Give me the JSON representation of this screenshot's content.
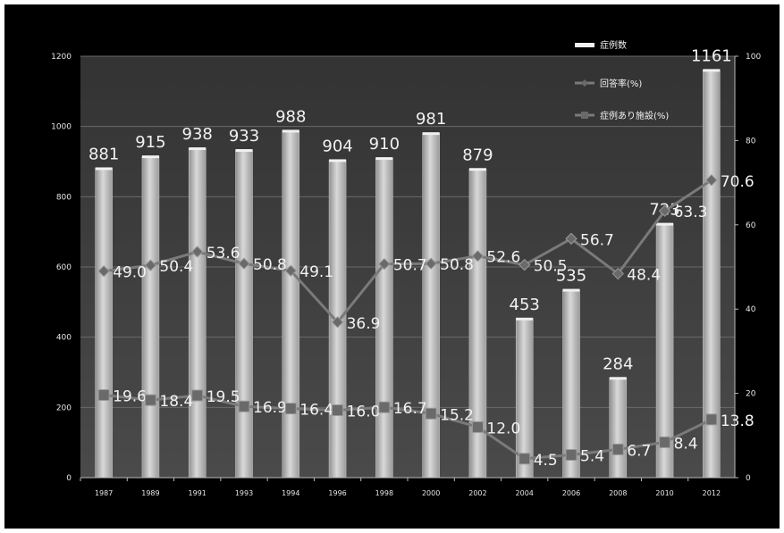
{
  "chart_data": {
    "type": "bar",
    "categories": [
      "1987",
      "1989",
      "1991",
      "1993",
      "1994",
      "1996",
      "1998",
      "2000",
      "2002",
      "2004",
      "2006",
      "2008",
      "2010",
      "2012"
    ],
    "series": [
      {
        "name": "症例数",
        "type": "bar",
        "axis": "left",
        "values": [
          881,
          915,
          938,
          933,
          988,
          904,
          910,
          981,
          879,
          453,
          535,
          284,
          723,
          1161
        ],
        "labels": [
          "881",
          "915",
          "938",
          "933",
          "988",
          "904",
          "910",
          "981",
          "879",
          "453",
          "535",
          "284",
          "723",
          "1161"
        ]
      },
      {
        "name": "回答率(%)",
        "type": "line",
        "axis": "right",
        "values": [
          49.0,
          50.4,
          53.6,
          50.8,
          49.1,
          36.9,
          50.7,
          50.8,
          52.6,
          50.5,
          56.7,
          48.4,
          63.3,
          70.6
        ],
        "labels": [
          "49.0",
          "50.4",
          "53.6",
          "50.8",
          "49.1",
          "36.9",
          "50.7",
          "50.8",
          "52.6",
          "50.5",
          "56.7",
          "48.4",
          "63.3",
          "70.6"
        ]
      },
      {
        "name": "症例あり施設(%)",
        "type": "line",
        "axis": "right",
        "values": [
          19.6,
          18.4,
          19.5,
          16.9,
          16.4,
          16.0,
          16.7,
          15.2,
          12.0,
          4.5,
          5.4,
          6.7,
          8.4,
          13.8
        ],
        "labels": [
          "19.6",
          "18.4",
          "19.5",
          "16.9",
          "16.4",
          "16.0",
          "16.7",
          "15.2",
          "12.0",
          "4.5",
          "5.4",
          "6.7",
          "8.4",
          "13.8"
        ]
      }
    ],
    "y_left": {
      "lim": [
        0,
        1200
      ],
      "ticks": [
        "0",
        "200",
        "400",
        "600",
        "800",
        "1000",
        "1200"
      ]
    },
    "y_right": {
      "lim": [
        0,
        100
      ],
      "ticks": [
        "0",
        "20",
        "40",
        "60",
        "80",
        "100"
      ]
    },
    "grid": true,
    "legend_position": "top-right",
    "colors": {
      "background": "#000000",
      "plot_area": "#3c3c3c",
      "bar": "#bdbdbd",
      "line": "#7a7a7a",
      "text": "#f2f2f2"
    }
  }
}
